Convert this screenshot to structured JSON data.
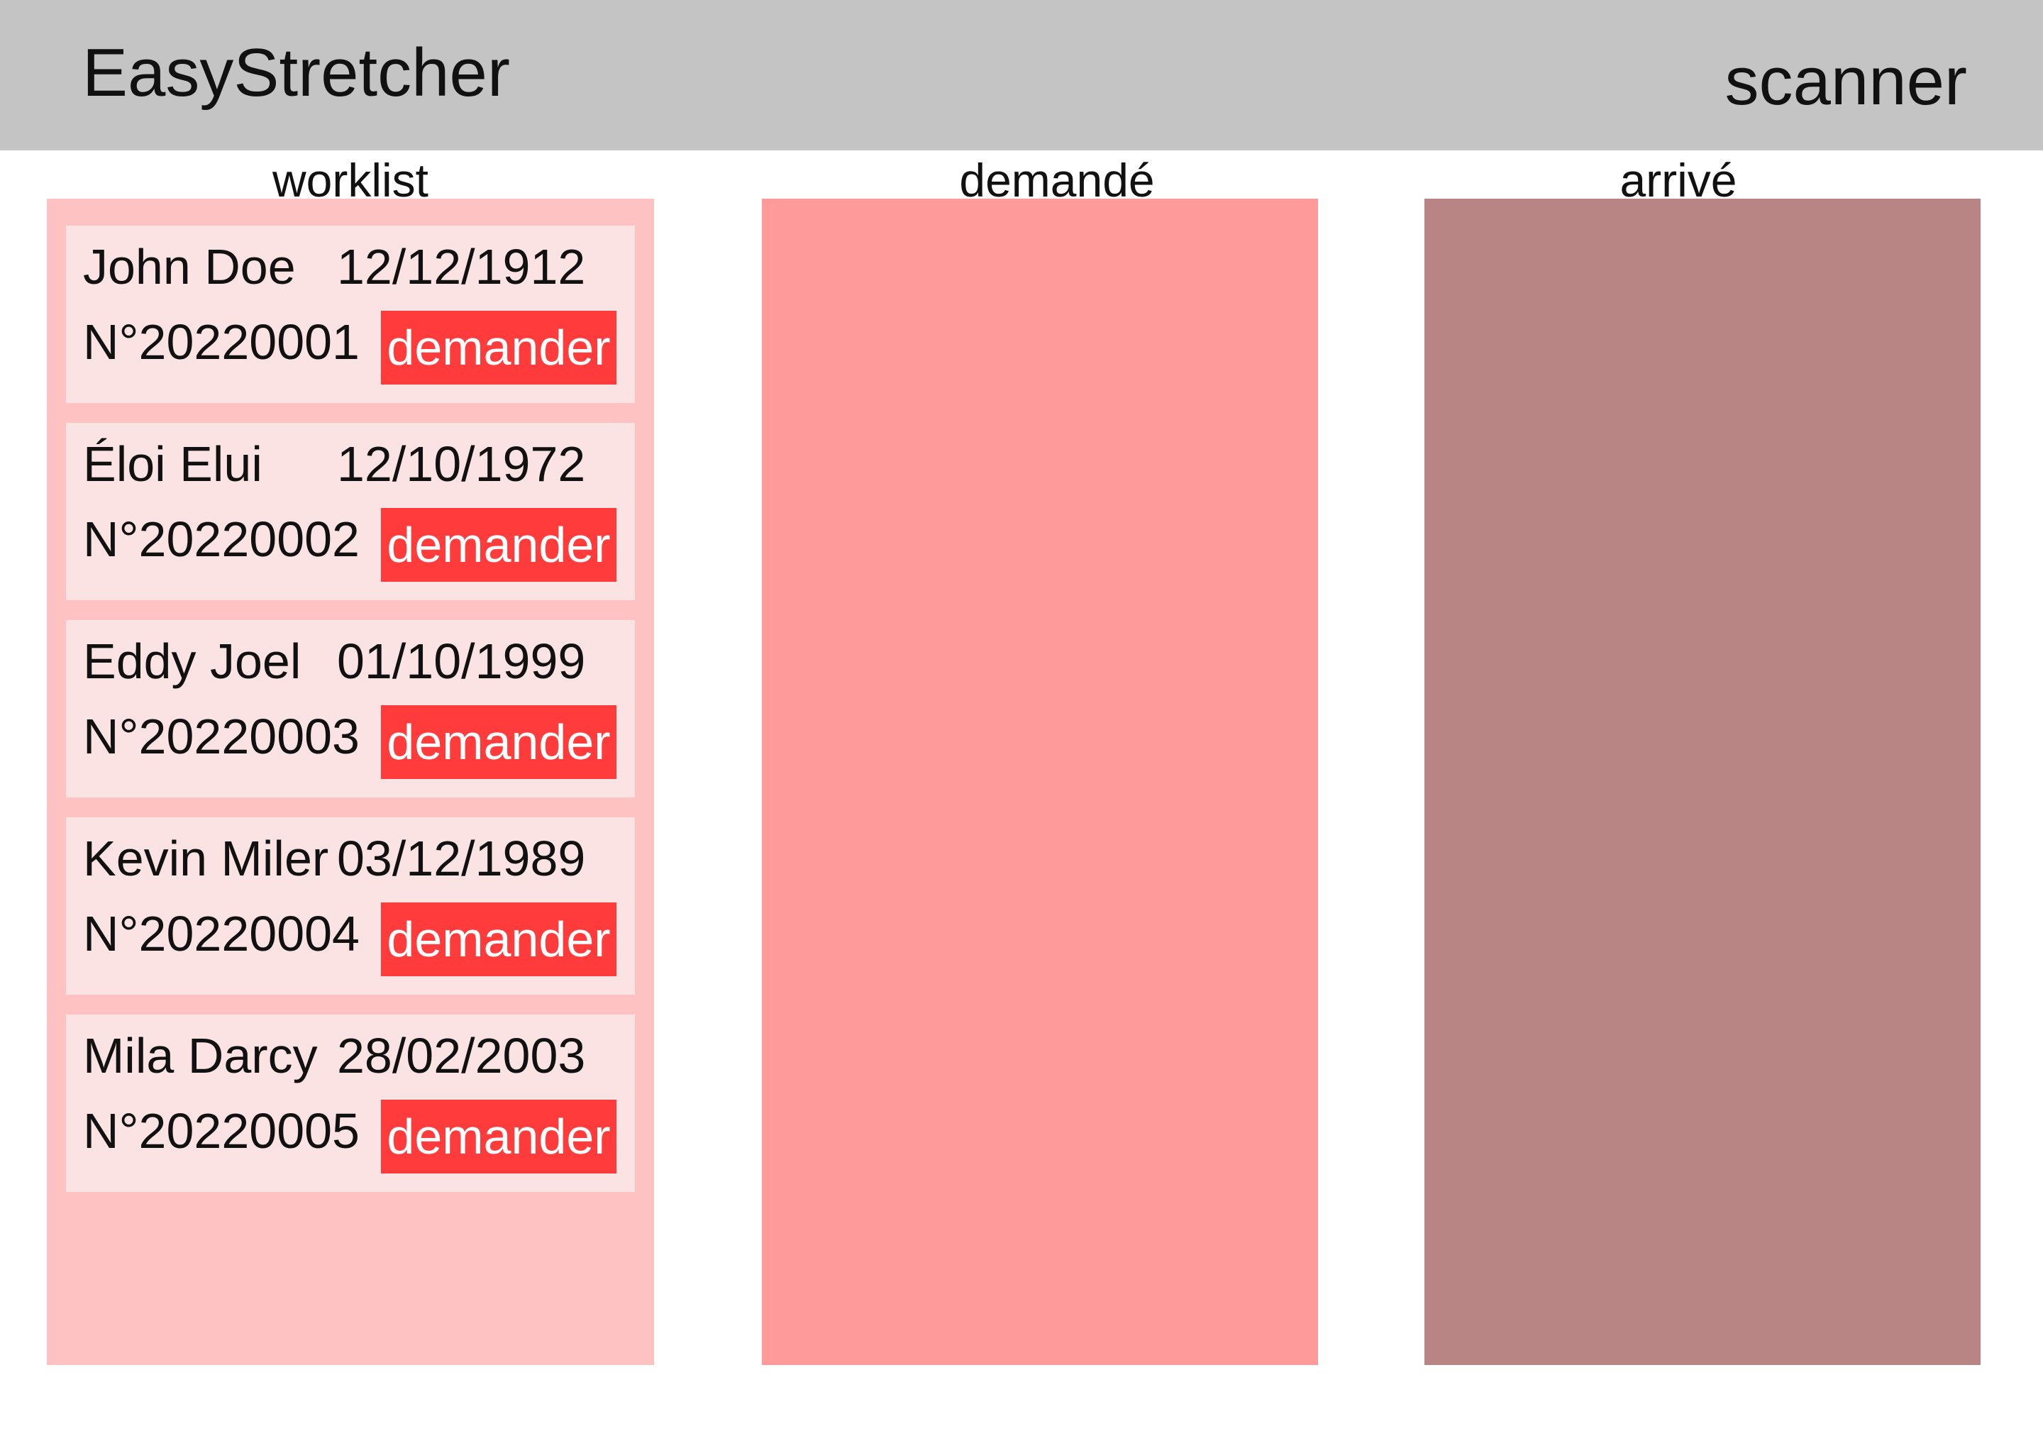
{
  "header": {
    "app_title": "EasyStretcher",
    "role_label": "scanner"
  },
  "columns": [
    {
      "title": "worklist"
    },
    {
      "title": "demandé"
    },
    {
      "title": "arrivé"
    }
  ],
  "worklist": {
    "items": [
      {
        "name": "John Doe",
        "birth_date": "12/12/1912",
        "number": "N°20220001",
        "action_label": "demander"
      },
      {
        "name": "Éloi Elui",
        "birth_date": "12/10/1972",
        "number": "N°20220002",
        "action_label": "demander"
      },
      {
        "name": "Eddy Joel",
        "birth_date": "01/10/1999",
        "number": "N°20220003",
        "action_label": "demander"
      },
      {
        "name": "Kevin Miler",
        "birth_date": "03/12/1989",
        "number": "N°20220004",
        "action_label": "demander"
      },
      {
        "name": "Mila Darcy",
        "birth_date": "28/02/2003",
        "number": "N°20220005",
        "action_label": "demander"
      }
    ]
  },
  "colors": {
    "header_bg": "#c4c4c4",
    "worklist_bg": "#ffc2c2",
    "card_bg": "#fce3e3",
    "demande_bg": "#ff9a9a",
    "arrive_bg": "#b88484",
    "button_bg": "#ff3b3b"
  }
}
